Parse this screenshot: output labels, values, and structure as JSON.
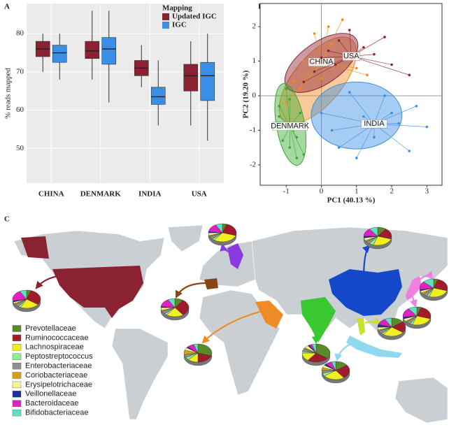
{
  "chart_data": [
    {
      "type": "box",
      "panel": "A",
      "ylabel": "% reads mapped",
      "legend_title": "Mapping",
      "categories": [
        "CHINA",
        "DENMARK",
        "INDIA",
        "USA"
      ],
      "ylim": [
        40.9,
        87.9
      ],
      "yticks": [
        50,
        60,
        70,
        80
      ],
      "series": [
        {
          "name": "Updated IGC",
          "color": "#8b2232",
          "whisker_low": [
            70,
            68,
            66,
            56
          ],
          "q1": [
            74,
            73.5,
            69,
            65
          ],
          "median": [
            76,
            75.5,
            71,
            69
          ],
          "q3": [
            78,
            78,
            73,
            72
          ],
          "whisker_high": [
            80,
            86,
            77,
            78
          ]
        },
        {
          "name": "IGC",
          "color": "#3a8ee6",
          "whisker_low": [
            68,
            62,
            56,
            52
          ],
          "q1": [
            72.5,
            72,
            61.5,
            62.5
          ],
          "median": [
            75,
            76,
            63.5,
            69
          ],
          "q3": [
            77,
            79,
            66,
            72.5
          ],
          "whisker_high": [
            80,
            86,
            73,
            80
          ]
        }
      ]
    },
    {
      "type": "scatter",
      "panel": "B",
      "xlabel": "PC1 (40.13 %)",
      "ylabel": "PC2 (19.20 %)",
      "xlim": [
        -1.74,
        3.43
      ],
      "ylim": [
        -2.59,
        2.67
      ],
      "xticks": [
        -1,
        0,
        1,
        2,
        3
      ],
      "yticks": [
        -2,
        -1,
        0,
        1,
        2
      ],
      "series": [
        {
          "name": "CHINA",
          "color": "#f08a24",
          "x": [
            -0.8,
            -0.5,
            -0.2,
            0.2,
            0.6,
            -0.6,
            0.0,
            1.0,
            1.3,
            -1.0,
            0.3,
            -0.3
          ],
          "y": [
            0.4,
            1.0,
            1.8,
            2.0,
            2.2,
            0.2,
            0.5,
            0.8,
            0.6,
            -0.2,
            1.5,
            0.9
          ],
          "ellipse": {
            "cx": -0.1,
            "cy": 0.45,
            "rx": 1.5,
            "ry": 0.7,
            "angle": -50
          }
        },
        {
          "name": "USA",
          "color": "#8b2232",
          "x": [
            0.2,
            0.5,
            0.8,
            1.2,
            1.5,
            2.0,
            2.5,
            -0.2,
            0.0,
            0.4,
            -0.5,
            1.8
          ],
          "y": [
            1.3,
            1.6,
            1.9,
            1.4,
            1.2,
            0.9,
            0.6,
            0.7,
            1.1,
            0.9,
            0.4,
            1.7
          ],
          "ellipse": {
            "cx": 0.0,
            "cy": 0.95,
            "rx": 1.2,
            "ry": 0.6,
            "angle": -35
          }
        },
        {
          "name": "DENMARK",
          "color": "#3aa830",
          "x": [
            -1.2,
            -1.1,
            -0.9,
            -0.7,
            -1.0,
            -0.8,
            -0.6,
            -1.1,
            -0.5,
            -0.9,
            -1.2,
            -0.7
          ],
          "y": [
            -0.3,
            -0.8,
            -1.5,
            -1.8,
            0.2,
            -1.0,
            -0.5,
            -1.3,
            -1.7,
            -0.1,
            -0.6,
            -1.2
          ],
          "ellipse": {
            "cx": -0.88,
            "cy": -0.83,
            "rx": 0.4,
            "ry": 1.2,
            "angle": -10
          }
        },
        {
          "name": "INDIA",
          "color": "#3a8ee6",
          "x": [
            0.0,
            0.5,
            1.0,
            1.5,
            2.2,
            2.7,
            3.0,
            2.5,
            1.8,
            0.8,
            0.3,
            2.0,
            1.2
          ],
          "y": [
            -0.5,
            -1.5,
            -1.8,
            -1.2,
            -0.8,
            -0.3,
            -0.9,
            -1.6,
            0.0,
            0.1,
            -1.0,
            -0.5,
            -0.6
          ],
          "ellipse": {
            "cx": 1.0,
            "cy": -0.57,
            "rx": 1.29,
            "ry": 0.97,
            "angle": 0
          }
        }
      ]
    },
    {
      "type": "pie",
      "panel": "C",
      "categories": [
        "Prevotellaceae",
        "Ruminococcaceae",
        "Lachnospiraceae",
        "Peptostreptococcus",
        "Enterobacteriaceae",
        "Coriobacteriaceae",
        "Erysipelotrichaceae",
        "Veillonellaceae",
        "Bacteroidaceae",
        "Bifidobacteriaceae"
      ],
      "colors": [
        "#5a8a2a",
        "#a01c2c",
        "#f0f020",
        "#90ee90",
        "#909090",
        "#d4a017",
        "#f5f590",
        "#1a2f9a",
        "#e020c0",
        "#60e0c0"
      ],
      "pies": [
        [
          5,
          30,
          22,
          3,
          5,
          2,
          3,
          2,
          20,
          8
        ],
        [
          5,
          25,
          30,
          3,
          5,
          2,
          5,
          2,
          15,
          8
        ],
        [
          10,
          30,
          20,
          3,
          5,
          2,
          5,
          2,
          15,
          8
        ],
        [
          30,
          20,
          12,
          5,
          5,
          8,
          5,
          2,
          8,
          5
        ],
        [
          35,
          25,
          15,
          3,
          5,
          2,
          5,
          2,
          3,
          5
        ],
        [
          15,
          25,
          25,
          5,
          5,
          5,
          5,
          3,
          7,
          5
        ],
        [
          10,
          20,
          25,
          5,
          5,
          2,
          5,
          3,
          15,
          10
        ],
        [
          5,
          25,
          25,
          3,
          5,
          3,
          4,
          2,
          15,
          13
        ],
        [
          5,
          25,
          25,
          3,
          5,
          2,
          5,
          3,
          17,
          10
        ],
        [
          15,
          20,
          25,
          3,
          5,
          2,
          5,
          5,
          12,
          8
        ]
      ]
    }
  ]
}
